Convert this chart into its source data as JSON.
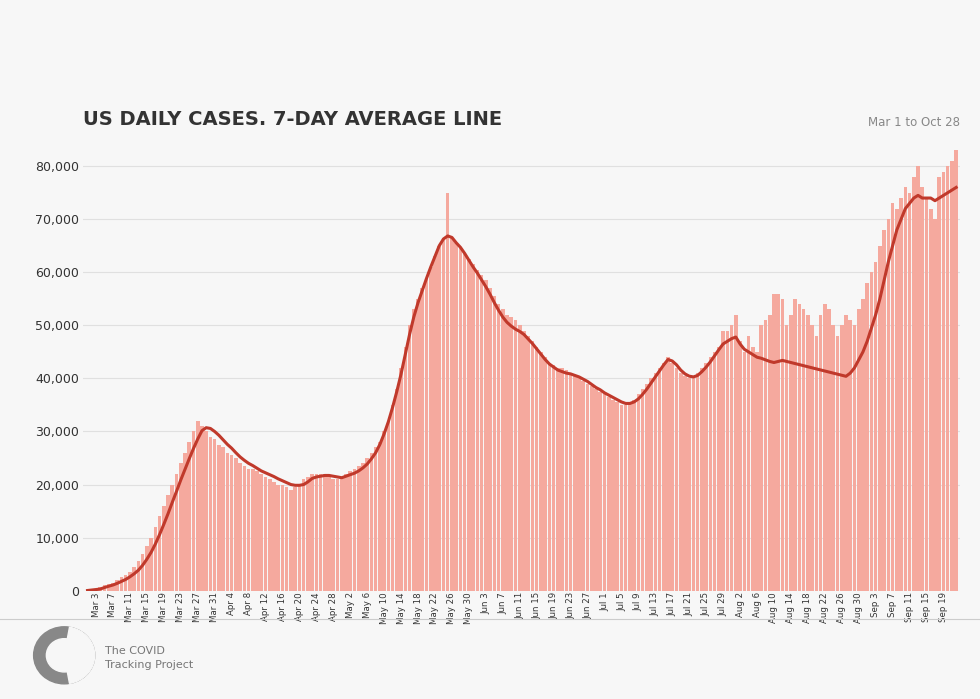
{
  "title": "US DAILY CASES. 7-DAY AVERAGE LINE",
  "subtitle": "Mar 1 to Oct 28",
  "background_color": "#f7f7f7",
  "bar_color": "#f5a99e",
  "line_color": "#c0392b",
  "grid_color": "#e0e0e0",
  "text_color": "#333333",
  "ylabel_values": [
    0,
    10000,
    20000,
    30000,
    40000,
    50000,
    60000,
    70000,
    80000
  ],
  "ylim": [
    0,
    83000
  ],
  "watermark_text1": "The COVID",
  "watermark_text2": "Tracking Project",
  "daily_cases": [
    30,
    200,
    400,
    600,
    1000,
    1200,
    1500,
    2000,
    2500,
    3000,
    3500,
    4500,
    5500,
    7000,
    8500,
    10000,
    12000,
    14000,
    16000,
    18000,
    20000,
    22000,
    24000,
    26000,
    28000,
    30000,
    32000,
    31000,
    30000,
    29000,
    28500,
    27500,
    27000,
    26000,
    25500,
    25000,
    24000,
    23500,
    23000,
    23000,
    22500,
    22000,
    21500,
    21000,
    20500,
    20000,
    20000,
    19500,
    19000,
    19500,
    20000,
    21000,
    21500,
    22000,
    22000,
    22000,
    22000,
    21500,
    21000,
    21000,
    21500,
    22000,
    22500,
    23000,
    23500,
    24000,
    25000,
    26000,
    27000,
    28000,
    30000,
    32000,
    35000,
    38000,
    42000,
    46000,
    50000,
    53000,
    55000,
    57000,
    59000,
    61000,
    63000,
    65000,
    66000,
    75000,
    66500,
    65500,
    64500,
    63500,
    62500,
    61500,
    60500,
    59500,
    58500,
    57000,
    55500,
    54000,
    53000,
    52000,
    51500,
    51000,
    50000,
    49000,
    48000,
    47000,
    46000,
    45000,
    44000,
    43000,
    42500,
    42000,
    42000,
    41500,
    41000,
    40500,
    40000,
    39500,
    39000,
    38500,
    38000,
    37500,
    37000,
    36500,
    36000,
    35500,
    35000,
    35000,
    35500,
    36000,
    37000,
    38000,
    39000,
    40000,
    41000,
    42000,
    43000,
    44000,
    43000,
    42000,
    41000,
    40500,
    40000,
    40500,
    41000,
    42000,
    43000,
    44000,
    45000,
    46000,
    49000,
    49000,
    50000,
    52000,
    47000,
    45000,
    48000,
    46000,
    45000,
    50000,
    51000,
    52000,
    56000,
    56000,
    55000,
    50000,
    52000,
    55000,
    54000,
    53000,
    52000,
    50000,
    48000,
    52000,
    54000,
    53000,
    50000,
    48000,
    50000,
    52000,
    51000,
    50000,
    53000,
    55000,
    58000,
    60000,
    62000,
    65000,
    68000,
    70000,
    73000,
    72000,
    74000,
    76000,
    75000,
    78000,
    80000,
    76000,
    74000,
    72000,
    70000,
    78000,
    79000,
    80000,
    81000,
    83000
  ],
  "avg7_cases": [
    30,
    115,
    210,
    308,
    590,
    840,
    1063,
    1375,
    1738,
    2113,
    2607,
    3179,
    3857,
    4786,
    5929,
    7214,
    8786,
    10571,
    12500,
    14500,
    16643,
    18714,
    20857,
    22857,
    24857,
    26786,
    28571,
    30143,
    30714,
    30571,
    30000,
    29286,
    28429,
    27571,
    26857,
    26000,
    25214,
    24571,
    24000,
    23571,
    23071,
    22571,
    22214,
    21857,
    21500,
    21071,
    20714,
    20357,
    20000,
    19857,
    19857,
    20000,
    20500,
    21143,
    21429,
    21571,
    21714,
    21714,
    21571,
    21429,
    21286,
    21571,
    21857,
    22143,
    22571,
    23143,
    23857,
    24857,
    26000,
    27571,
    29571,
    31857,
    34571,
    37571,
    40857,
    44571,
    48286,
    51571,
    54286,
    56571,
    58857,
    61000,
    63000,
    65000,
    66286,
    66857,
    66571,
    65571,
    64714,
    63571,
    62286,
    61000,
    59857,
    58571,
    57286,
    55857,
    54286,
    52857,
    51571,
    50571,
    49857,
    49286,
    48857,
    48286,
    47429,
    46571,
    45571,
    44571,
    43571,
    42714,
    42143,
    41571,
    41286,
    41000,
    40857,
    40571,
    40286,
    39857,
    39429,
    38857,
    38286,
    37857,
    37286,
    36857,
    36429,
    36000,
    35571,
    35286,
    35286,
    35571,
    36143,
    37000,
    38000,
    39143,
    40286,
    41429,
    42571,
    43571,
    43286,
    42571,
    41571,
    40857,
    40429,
    40286,
    40571,
    41286,
    42143,
    43143,
    44286,
    45429,
    46500,
    47000,
    47500,
    47800,
    46500,
    45500,
    45000,
    44500,
    44000,
    43800,
    43500,
    43200,
    43000,
    43200,
    43400,
    43200,
    43000,
    42800,
    42600,
    42400,
    42200,
    42000,
    41800,
    41600,
    41400,
    41200,
    41000,
    40800,
    40600,
    40400,
    41000,
    42000,
    43500,
    45000,
    47000,
    49500,
    52000,
    55000,
    58500,
    62000,
    65000,
    68000,
    70000,
    72000,
    73000,
    74000,
    74500,
    74000,
    74000,
    74000,
    73500,
    74000,
    74500,
    75000,
    75500,
    76000
  ]
}
